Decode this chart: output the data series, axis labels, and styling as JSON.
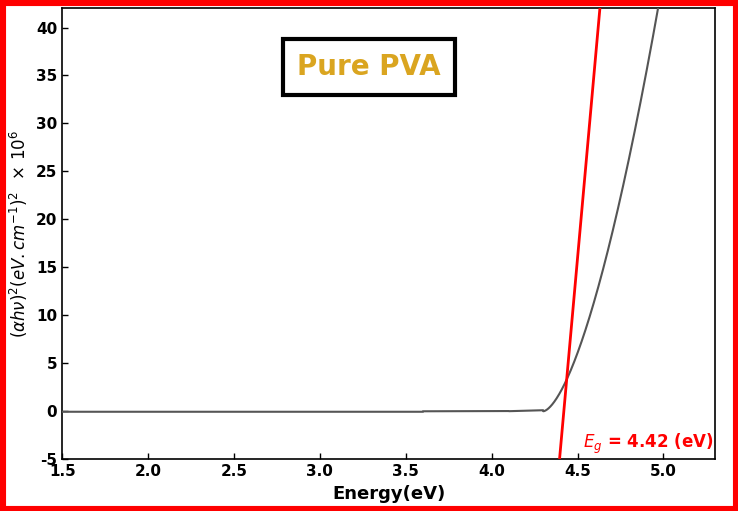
{
  "title": "Pure PVA",
  "title_color": "#DAA520",
  "title_fontsize": 20,
  "xlabel": "Energy(eV)",
  "xlim": [
    1.5,
    5.3
  ],
  "ylim": [
    -5,
    42
  ],
  "xticks": [
    1.5,
    2.0,
    2.5,
    3.0,
    3.5,
    4.0,
    4.5,
    5.0
  ],
  "yticks": [
    -5,
    0,
    5,
    10,
    15,
    20,
    25,
    30,
    35,
    40
  ],
  "Eg": 4.42,
  "line_color": "#555555",
  "tangent_color": "#FF0000",
  "background_color": "#ffffff",
  "border_color": "#FF0000",
  "box_border_color": "#000000",
  "label_fontsize": 13,
  "tick_fontsize": 11
}
